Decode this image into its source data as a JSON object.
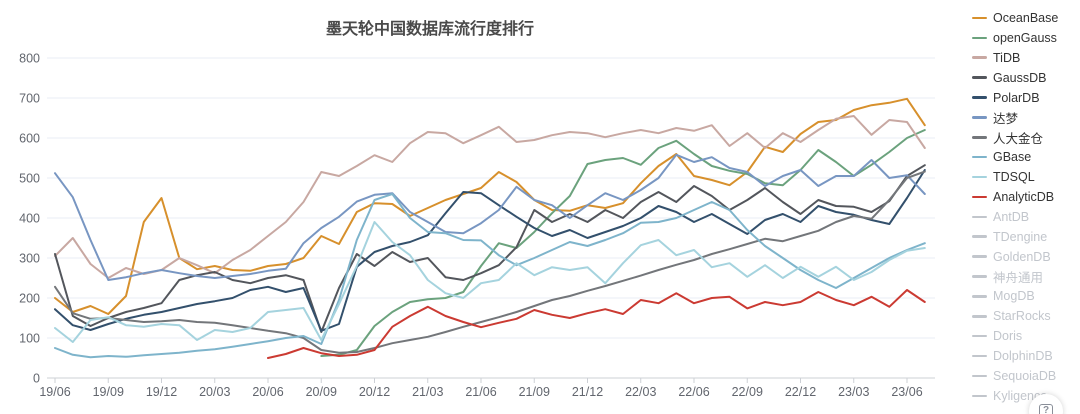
{
  "title": "墨天轮中国数据库流行度排行",
  "help": {
    "icon": "boxed-question-mark",
    "glyph": "?"
  },
  "chart_data": {
    "type": "line",
    "title": "墨天轮中国数据库流行度排行",
    "xlabel": "",
    "ylabel": "",
    "ylim": [
      0,
      800
    ],
    "y_ticks": [
      0,
      100,
      200,
      300,
      400,
      500,
      600,
      700,
      800
    ],
    "grid": "horizontal-only",
    "legend_position": "right",
    "x": [
      "19/06",
      "19/07",
      "19/08",
      "19/09",
      "19/10",
      "19/11",
      "19/12",
      "20/01",
      "20/02",
      "20/03",
      "20/04",
      "20/05",
      "20/06",
      "20/07",
      "20/08",
      "20/09",
      "20/10",
      "20/11",
      "20/12",
      "21/01",
      "21/02",
      "21/03",
      "21/04",
      "21/05",
      "21/06",
      "21/07",
      "21/08",
      "21/09",
      "21/10",
      "21/11",
      "21/12",
      "22/01",
      "22/02",
      "22/03",
      "22/04",
      "22/05",
      "22/06",
      "22/07",
      "22/08",
      "22/09",
      "22/10",
      "22/11",
      "22/12",
      "23/01",
      "23/02",
      "23/03",
      "23/04",
      "23/05",
      "23/06",
      "23/07"
    ],
    "x_tick_labels": [
      "19/06",
      "19/09",
      "19/12",
      "20/03",
      "20/06",
      "20/09",
      "20/12",
      "21/03",
      "21/06",
      "21/09",
      "21/12",
      "22/03",
      "22/06",
      "22/09",
      "22/12",
      "23/03",
      "23/06"
    ],
    "x_tick_every": 3,
    "series": [
      {
        "name": "OceanBase",
        "color": "#d7902c",
        "active": true,
        "values": [
          200,
          165,
          180,
          160,
          205,
          390,
          450,
          300,
          272,
          280,
          270,
          268,
          280,
          285,
          300,
          355,
          335,
          415,
          437,
          435,
          405,
          425,
          445,
          460,
          475,
          515,
          490,
          445,
          420,
          418,
          432,
          425,
          437,
          487,
          530,
          560,
          505,
          495,
          482,
          515,
          578,
          565,
          610,
          640,
          645,
          670,
          682,
          688,
          698,
          632
        ]
      },
      {
        "name": "openGauss",
        "color": "#6ba27d",
        "active": true,
        "values": [
          null,
          null,
          null,
          null,
          null,
          null,
          null,
          null,
          null,
          null,
          null,
          null,
          null,
          null,
          null,
          55,
          58,
          70,
          130,
          165,
          190,
          197,
          200,
          215,
          280,
          337,
          325,
          365,
          412,
          455,
          535,
          545,
          550,
          533,
          575,
          593,
          560,
          530,
          518,
          510,
          487,
          482,
          520,
          570,
          540,
          505,
          533,
          565,
          600,
          620
        ]
      },
      {
        "name": "TiDB",
        "color": "#c8a8a2",
        "active": true,
        "values": [
          305,
          350,
          285,
          250,
          275,
          260,
          270,
          300,
          282,
          262,
          295,
          320,
          355,
          390,
          440,
          515,
          505,
          530,
          557,
          540,
          587,
          615,
          612,
          587,
          607,
          628,
          590,
          595,
          607,
          615,
          612,
          602,
          612,
          620,
          612,
          625,
          618,
          632,
          580,
          612,
          575,
          612,
          590,
          620,
          648,
          655,
          608,
          645,
          640,
          575
        ]
      },
      {
        "name": "GaussDB",
        "color": "#53565c",
        "active": true,
        "values": [
          310,
          155,
          130,
          150,
          165,
          175,
          187,
          245,
          257,
          265,
          245,
          237,
          250,
          257,
          245,
          115,
          225,
          310,
          280,
          315,
          290,
          300,
          252,
          245,
          262,
          282,
          327,
          420,
          390,
          410,
          390,
          420,
          400,
          440,
          465,
          440,
          480,
          455,
          420,
          445,
          475,
          440,
          410,
          445,
          430,
          428,
          415,
          442,
          505,
          532
        ]
      },
      {
        "name": "PolarDB",
        "color": "#33506c",
        "active": true,
        "values": [
          172,
          132,
          120,
          135,
          148,
          158,
          165,
          175,
          185,
          192,
          200,
          220,
          228,
          215,
          225,
          118,
          135,
          278,
          315,
          330,
          340,
          357,
          412,
          465,
          462,
          432,
          403,
          375,
          355,
          370,
          350,
          365,
          380,
          400,
          430,
          415,
          390,
          410,
          385,
          360,
          395,
          410,
          390,
          430,
          415,
          408,
          395,
          385,
          450,
          520
        ]
      },
      {
        "name": "达梦",
        "color": "#7896c2",
        "active": true,
        "values": [
          512,
          452,
          345,
          245,
          252,
          262,
          270,
          262,
          255,
          250,
          255,
          260,
          268,
          273,
          337,
          375,
          403,
          441,
          458,
          462,
          415,
          390,
          365,
          362,
          387,
          420,
          478,
          445,
          432,
          400,
          432,
          462,
          445,
          470,
          500,
          558,
          540,
          552,
          525,
          515,
          480,
          505,
          520,
          480,
          505,
          505,
          545,
          500,
          507,
          460
        ]
      },
      {
        "name": "人大金仓",
        "color": "#73767a",
        "active": true,
        "values": [
          228,
          162,
          148,
          150,
          145,
          140,
          142,
          145,
          140,
          138,
          132,
          125,
          118,
          112,
          100,
          70,
          63,
          65,
          75,
          87,
          95,
          103,
          115,
          128,
          140,
          152,
          165,
          180,
          195,
          205,
          218,
          230,
          243,
          256,
          270,
          283,
          295,
          310,
          322,
          335,
          348,
          342,
          355,
          368,
          390,
          405,
          398,
          445,
          500,
          516
        ]
      },
      {
        "name": "GBase",
        "color": "#7eb4cb",
        "active": true,
        "values": [
          75,
          58,
          52,
          55,
          53,
          57,
          60,
          63,
          68,
          72,
          78,
          85,
          92,
          100,
          105,
          85,
          195,
          345,
          445,
          460,
          400,
          365,
          362,
          345,
          344,
          307,
          282,
          300,
          320,
          340,
          330,
          345,
          362,
          388,
          390,
          400,
          420,
          440,
          420,
          370,
          330,
          300,
          270,
          245,
          225,
          250,
          275,
          300,
          320,
          337
        ]
      },
      {
        "name": "TDSQL",
        "color": "#a5d3de",
        "active": true,
        "values": [
          125,
          90,
          145,
          152,
          132,
          128,
          135,
          132,
          95,
          120,
          115,
          125,
          165,
          170,
          175,
          95,
          185,
          280,
          390,
          340,
          307,
          245,
          212,
          200,
          237,
          245,
          287,
          257,
          277,
          270,
          277,
          237,
          287,
          332,
          345,
          307,
          320,
          277,
          287,
          253,
          282,
          250,
          278,
          253,
          278,
          245,
          265,
          295,
          318,
          325
        ]
      },
      {
        "name": "AnalyticDB",
        "color": "#cb3a32",
        "active": true,
        "values": [
          null,
          null,
          null,
          null,
          null,
          null,
          null,
          null,
          null,
          null,
          null,
          null,
          50,
          60,
          75,
          62,
          55,
          58,
          70,
          128,
          155,
          178,
          155,
          140,
          127,
          138,
          148,
          170,
          158,
          150,
          162,
          172,
          160,
          195,
          187,
          212,
          187,
          200,
          203,
          174,
          190,
          182,
          190,
          215,
          195,
          182,
          203,
          178,
          220,
          190
        ]
      },
      {
        "name": "AntDB",
        "color": "#c3c7cd",
        "active": false,
        "values": []
      },
      {
        "name": "TDengine",
        "color": "#c3c7cd",
        "active": false,
        "values": []
      },
      {
        "name": "GoldenDB",
        "color": "#c3c7cd",
        "active": false,
        "values": []
      },
      {
        "name": "神舟通用",
        "color": "#c3c7cd",
        "active": false,
        "values": []
      },
      {
        "name": "MogDB",
        "color": "#c3c7cd",
        "active": false,
        "values": []
      },
      {
        "name": "StarRocks",
        "color": "#c3c7cd",
        "active": false,
        "values": []
      },
      {
        "name": "Doris",
        "color": "#c3c7cd",
        "active": false,
        "values": []
      },
      {
        "name": "DolphinDB",
        "color": "#c3c7cd",
        "active": false,
        "values": []
      },
      {
        "name": "SequoiaDB",
        "color": "#c3c7cd",
        "active": false,
        "values": []
      },
      {
        "name": "Kyligence",
        "color": "#c3c7cd",
        "active": false,
        "values": []
      }
    ],
    "style": {
      "grid_color": "#e9edf6",
      "axis_color": "#cdd0d6",
      "tick_label_color": "#62666e",
      "title_color": "#4a4a4a",
      "inactive_legend_color": "#c2c6cc"
    }
  }
}
